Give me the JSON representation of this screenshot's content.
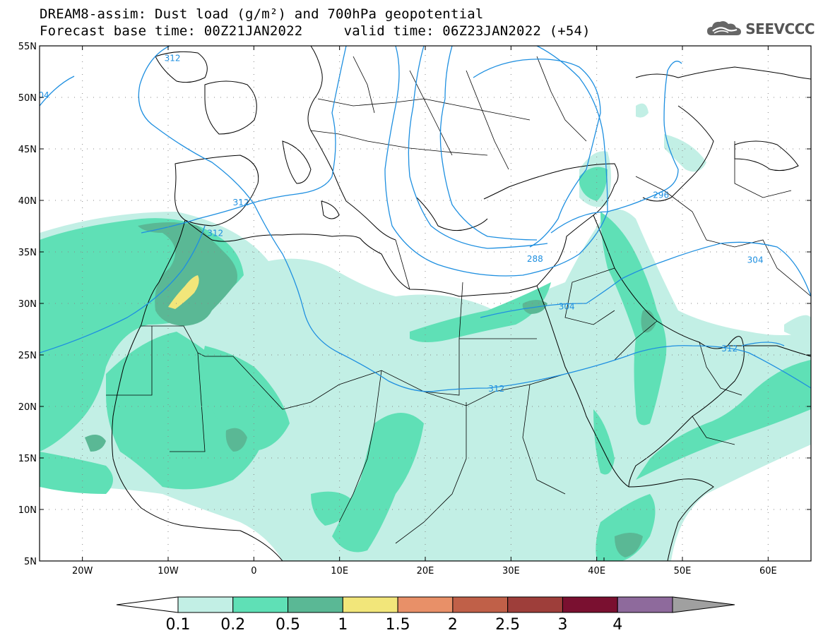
{
  "header": {
    "title_line1": "DREAM8-assim: Dust load (g/m²) and 700hPa geopotential",
    "title_line2": "Forecast base time: 00Z21JAN2022     valid time: 06Z23JAN2022 (+54)",
    "logo_text": "SEEVCCC",
    "logo_icon": "cloud-icon"
  },
  "map": {
    "lat_labels": [
      "55N",
      "50N",
      "45N",
      "40N",
      "35N",
      "30N",
      "25N",
      "20N",
      "15N",
      "10N",
      "5N"
    ],
    "lat_values": [
      55,
      50,
      45,
      40,
      35,
      30,
      25,
      20,
      15,
      10,
      5
    ],
    "lon_labels": [
      "20W",
      "10W",
      "0",
      "10E",
      "20E",
      "30E",
      "40E",
      "50E",
      "60E"
    ],
    "lon_values": [
      -20,
      -10,
      0,
      10,
      20,
      30,
      40,
      50,
      60
    ],
    "lon_range": [
      -25,
      65
    ],
    "lat_range": [
      5,
      55
    ],
    "contour_labels": [
      {
        "text": "312",
        "lon": -1.5,
        "lat": 39.8
      },
      {
        "text": "312",
        "lon": -4.5,
        "lat": 36.8
      },
      {
        "text": "304",
        "lon": 58.5,
        "lat": 34.2
      },
      {
        "text": "296",
        "lon": 47.5,
        "lat": 40.5
      },
      {
        "text": "288",
        "lon": 32.8,
        "lat": 34.3
      },
      {
        "text": "304",
        "lon": 36.5,
        "lat": 29.7
      },
      {
        "text": "312",
        "lon": 55.5,
        "lat": 25.6
      },
      {
        "text": "312",
        "lon": 28.3,
        "lat": 21.7
      },
      {
        "text": "04",
        "lon": -24.5,
        "lat": 50.2
      },
      {
        "text": "312",
        "lon": -9.5,
        "lat": 53.8
      }
    ]
  },
  "colorbar": {
    "labels": [
      "0.1",
      "0.2",
      "0.5",
      "1",
      "1.5",
      "2",
      "2.5",
      "3",
      "4"
    ],
    "colors": [
      "#c2efe5",
      "#5fe0b6",
      "#5ab895",
      "#f2e67a",
      "#e89068",
      "#c06048",
      "#9e3e3a",
      "#7a1030",
      "#8e6a9c"
    ],
    "under_color": "#ffffff",
    "over_color": "#a0a0a0"
  },
  "colors": {
    "contour": "#1e8fe0",
    "coast": "#000000",
    "dust_01": "#c2efe5",
    "dust_02": "#5fe0b6",
    "dust_05": "#5ab895",
    "dust_1": "#f2e67a"
  }
}
